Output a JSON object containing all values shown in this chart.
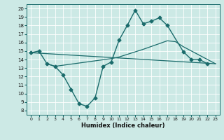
{
  "xlabel": "Humidex (Indice chaleur)",
  "xlim": [
    -0.5,
    23.5
  ],
  "ylim": [
    7.5,
    20.5
  ],
  "yticks": [
    8,
    9,
    10,
    11,
    12,
    13,
    14,
    15,
    16,
    17,
    18,
    19,
    20
  ],
  "xticks": [
    0,
    1,
    2,
    3,
    4,
    5,
    6,
    7,
    8,
    9,
    10,
    11,
    12,
    13,
    14,
    15,
    16,
    17,
    18,
    19,
    20,
    21,
    22,
    23
  ],
  "bg_color": "#cce9e5",
  "line_color": "#1a6b6b",
  "main_line": {
    "x": [
      0,
      1,
      2,
      3,
      4,
      5,
      6,
      7,
      8,
      9,
      10,
      11,
      12,
      13,
      14,
      15,
      16,
      17,
      19,
      20,
      21,
      22
    ],
    "y": [
      14.8,
      15.0,
      13.5,
      13.2,
      12.2,
      10.5,
      8.8,
      8.5,
      9.5,
      13.2,
      13.7,
      16.3,
      18.0,
      19.8,
      18.2,
      18.5,
      18.9,
      18.0,
      14.9,
      14.0,
      14.0,
      13.5
    ]
  },
  "trend_line1": {
    "x": [
      0,
      23
    ],
    "y": [
      14.8,
      13.5
    ]
  },
  "trend_line2": {
    "x": [
      2,
      3,
      10,
      11,
      12,
      13,
      14,
      17,
      18,
      19,
      20,
      21,
      22,
      23
    ],
    "y": [
      13.5,
      13.2,
      14.1,
      14.3,
      14.6,
      14.9,
      15.2,
      16.2,
      16.1,
      15.5,
      15.0,
      14.5,
      14.0,
      13.5
    ]
  }
}
